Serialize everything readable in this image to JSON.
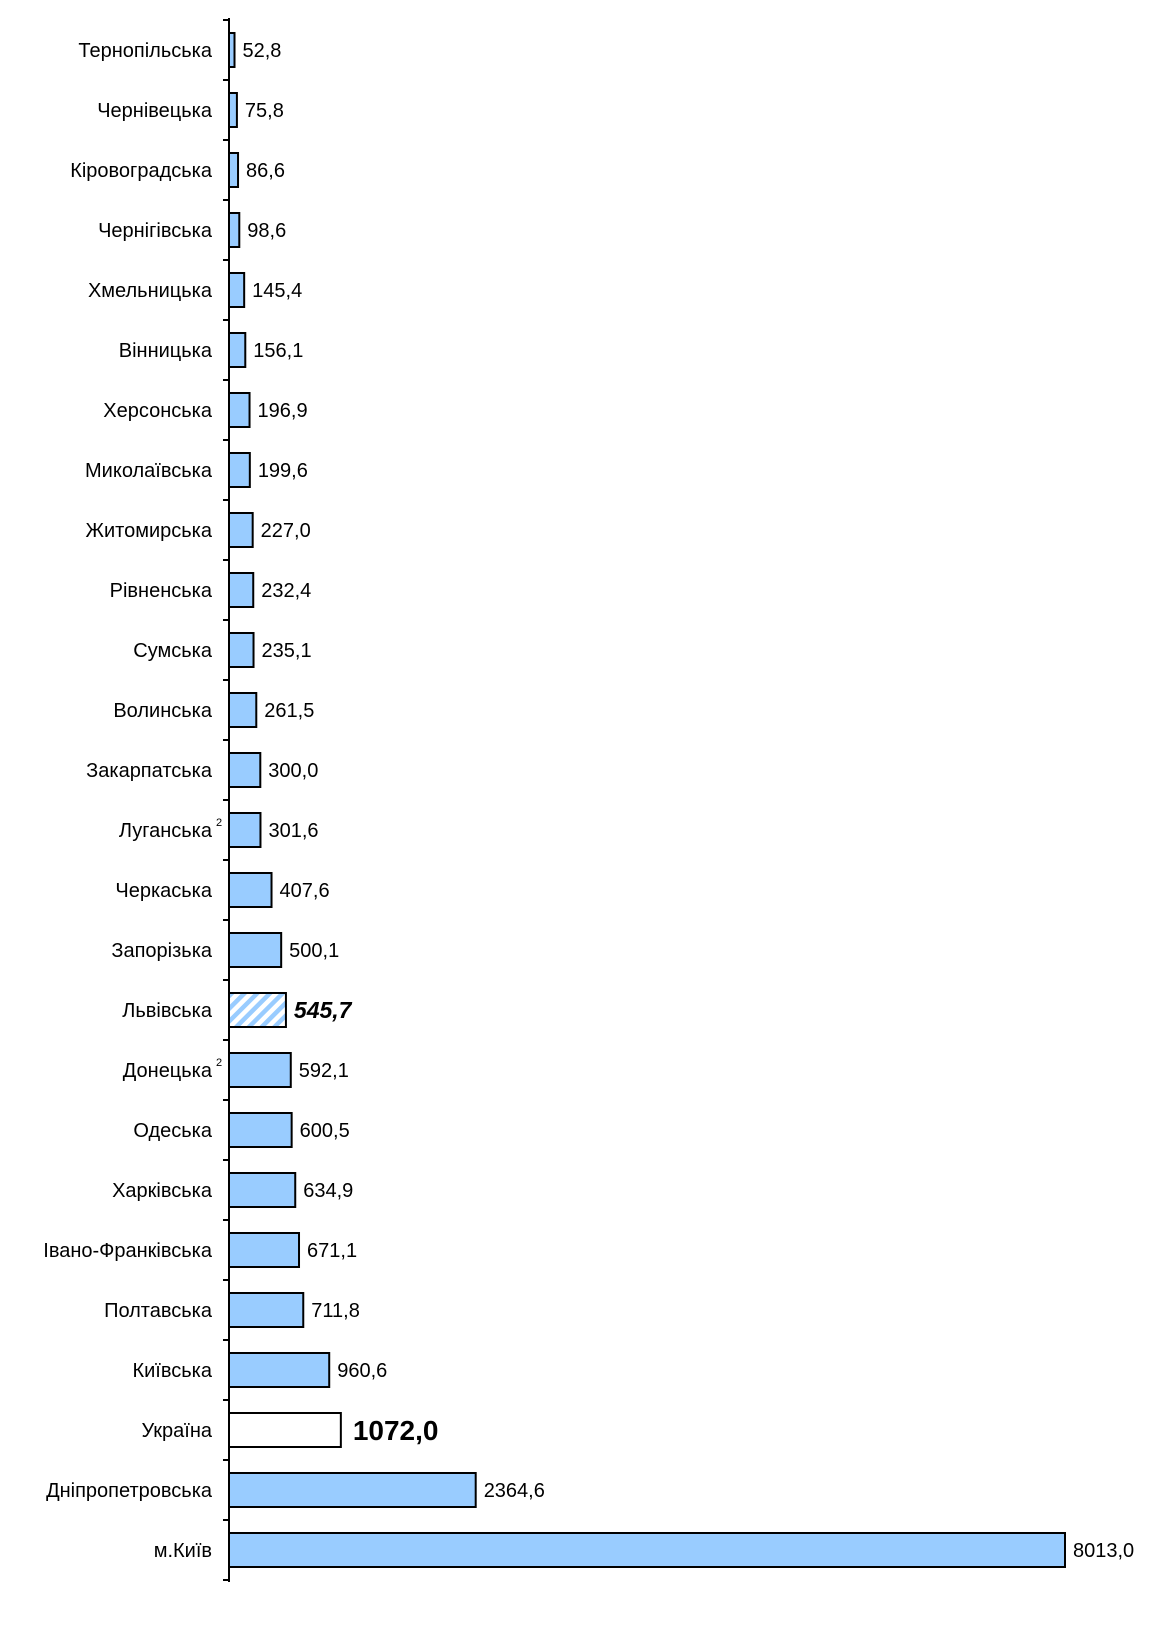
{
  "chart_data": {
    "type": "bar",
    "orientation": "horizontal",
    "categories": [
      "Тернопільська",
      "Чернівецька",
      "Кіровоградська",
      "Чернігівська",
      "Хмельницька",
      "Вінницька",
      "Херсонська",
      "Миколаївська",
      "Житомирська",
      "Рівненська",
      "Сумська",
      "Волинська",
      "Закарпатська",
      "Луганська",
      "Черкаська",
      "Запорізька",
      "Львівська",
      "Донецька",
      "Одеська",
      "Харківська",
      "Івано-Франківська",
      "Полтавська",
      "Київська",
      "Україна",
      "Дніпропетровська",
      "м.Київ"
    ],
    "values": [
      52.8,
      75.8,
      86.6,
      98.6,
      145.4,
      156.1,
      196.9,
      199.6,
      227.0,
      232.4,
      235.1,
      261.5,
      300.0,
      301.6,
      407.6,
      500.1,
      545.7,
      592.1,
      600.5,
      634.9,
      671.1,
      711.8,
      960.6,
      1072.0,
      2364.6,
      8013.0
    ],
    "value_labels": [
      "52,8",
      "75,8",
      "86,6",
      "98,6",
      "145,4",
      "156,1",
      "196,9",
      "199,6",
      "227,0",
      "232,4",
      "235,1",
      "261,5",
      "300,0",
      "301,6",
      "407,6",
      "500,1",
      "545,7",
      "592,1",
      "600,5",
      "634,9",
      "671,1",
      "711,8",
      "960,6",
      "1072,0",
      "2364,6",
      "8013,0"
    ],
    "footnotes": {
      "Луганська": "2",
      "Донецька": "2"
    },
    "highlight": {
      "Львівська": "hatched",
      "Україна": "outline"
    },
    "title": "",
    "xlabel": "",
    "ylabel": "",
    "xlim": [
      0,
      8013.0
    ],
    "grid": false,
    "legend": "none",
    "colors": {
      "bar_fill": "#99ccff",
      "bar_stroke": "#000000",
      "highlight_fill": "#ffffff",
      "hatch_stripe": "#99ccff",
      "text": "#000000"
    }
  }
}
